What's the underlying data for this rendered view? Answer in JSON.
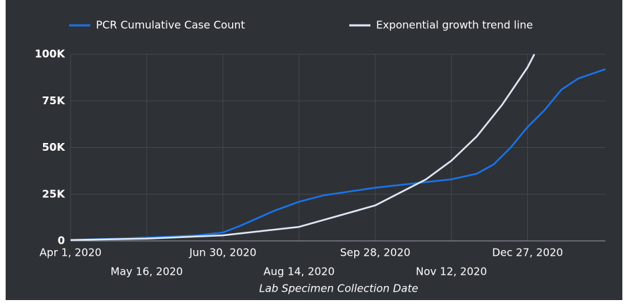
{
  "chart_data": {
    "type": "line",
    "x_label": "Lab Specimen Collection Date",
    "xlim": [
      "2020-04-01",
      "2021-02-11"
    ],
    "xticks": [
      {
        "value": "2020-04-01",
        "label": "Apr 1, 2020"
      },
      {
        "value": "2020-05-16",
        "label": "May 16, 2020"
      },
      {
        "value": "2020-06-30",
        "label": "Jun 30, 2020"
      },
      {
        "value": "2020-08-14",
        "label": "Aug 14, 2020"
      },
      {
        "value": "2020-09-28",
        "label": "Sep 28, 2020"
      },
      {
        "value": "2020-11-12",
        "label": "Nov 12, 2020"
      },
      {
        "value": "2020-12-27",
        "label": "Dec 27, 2020"
      }
    ],
    "ylim": [
      0,
      100000
    ],
    "yticks": [
      0,
      {
        "value": 25000,
        "label": "25K"
      },
      {
        "value": 50000,
        "label": "50K"
      },
      {
        "value": 75000,
        "label": "75K"
      },
      {
        "value": 100000,
        "label": "100K"
      }
    ],
    "grid": true,
    "series": [
      {
        "name": "PCR Cumulative Case Count",
        "color": "#1a73e8",
        "x": [
          "2020-04-01",
          "2020-04-16",
          "2020-05-01",
          "2020-05-16",
          "2020-05-31",
          "2020-06-15",
          "2020-06-30",
          "2020-07-10",
          "2020-07-20",
          "2020-07-30",
          "2020-08-14",
          "2020-08-29",
          "2020-09-13",
          "2020-09-28",
          "2020-10-13",
          "2020-10-28",
          "2020-11-12",
          "2020-11-27",
          "2020-12-07",
          "2020-12-17",
          "2020-12-27",
          "2021-01-06",
          "2021-01-16",
          "2021-01-26",
          "2021-02-11"
        ],
        "values": [
          500,
          900,
          1300,
          1800,
          2300,
          3000,
          4500,
          8000,
          12000,
          16000,
          21000,
          24500,
          26500,
          28500,
          30000,
          31500,
          33000,
          36000,
          41000,
          50000,
          61000,
          70000,
          81000,
          87000,
          92000
        ]
      },
      {
        "name": "Exponential growth trend line",
        "color": "#dfe8f5",
        "x": [
          "2020-04-01",
          "2020-05-16",
          "2020-06-30",
          "2020-08-14",
          "2020-09-28",
          "2020-10-28",
          "2020-11-12",
          "2020-11-27",
          "2020-12-12",
          "2020-12-27",
          "2020-12-31"
        ],
        "values": [
          500,
          1200,
          3000,
          7500,
          19000,
          33000,
          43000,
          56000,
          73000,
          93000,
          100000
        ]
      }
    ]
  }
}
